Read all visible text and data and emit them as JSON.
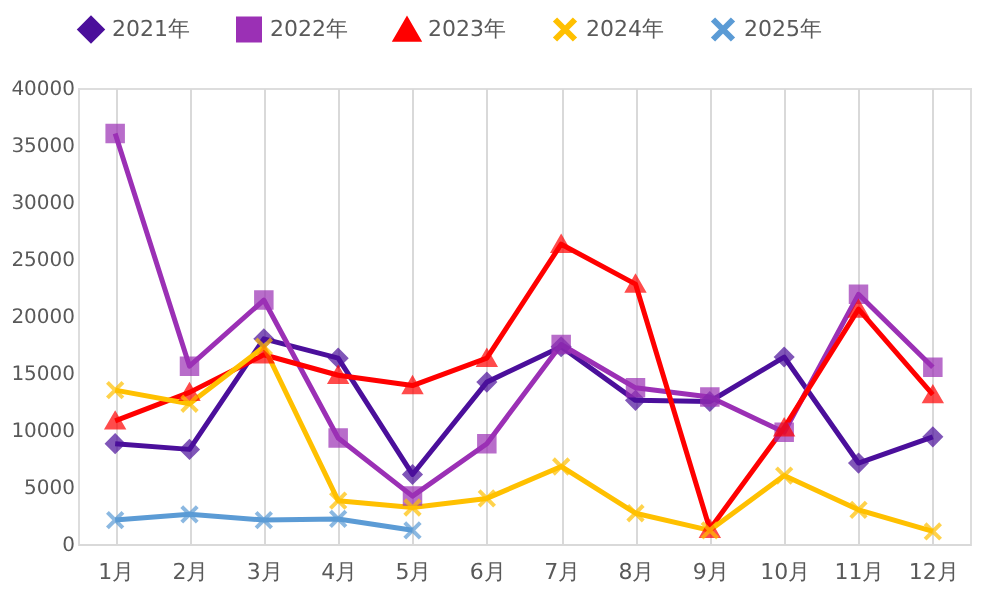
{
  "chart_data": {
    "type": "line",
    "categories": [
      "1月",
      "2月",
      "3月",
      "4月",
      "5月",
      "6月",
      "7月",
      "8月",
      "9月",
      "10月",
      "11月",
      "12月"
    ],
    "series": [
      {
        "name": "2021年",
        "color": "#4b0f9b",
        "marker": "diamond",
        "values": [
          8800,
          8300,
          18000,
          16300,
          6100,
          14200,
          17300,
          12600,
          12500,
          16400,
          7100,
          9400
        ]
      },
      {
        "name": "2022年",
        "color": "#9b30b5",
        "marker": "square",
        "values": [
          36000,
          15600,
          21400,
          9300,
          4200,
          8800,
          17500,
          13700,
          12900,
          9800,
          21900,
          15500
        ]
      },
      {
        "name": "2023年",
        "color": "#ff0000",
        "marker": "triangle",
        "values": [
          10800,
          13300,
          16600,
          14800,
          13900,
          16300,
          26300,
          22800,
          1300,
          10200,
          20600,
          13100
        ]
      },
      {
        "name": "2024年",
        "color": "#ffc000",
        "marker": "cross",
        "values": [
          13500,
          12300,
          17300,
          3800,
          3200,
          4000,
          6800,
          2700,
          1200,
          6000,
          3000,
          1100
        ]
      },
      {
        "name": "2025年",
        "color": "#5b9bd5",
        "marker": "cross",
        "values": [
          2100,
          2600,
          2100,
          2200,
          1200,
          null,
          null,
          null,
          null,
          null,
          null,
          null
        ]
      }
    ],
    "ylim": [
      0,
      40000
    ],
    "yticks": [
      0,
      5000,
      10000,
      15000,
      20000,
      25000,
      30000,
      35000,
      40000
    ],
    "grid": "x",
    "legend": "top",
    "line_style": "solid"
  }
}
